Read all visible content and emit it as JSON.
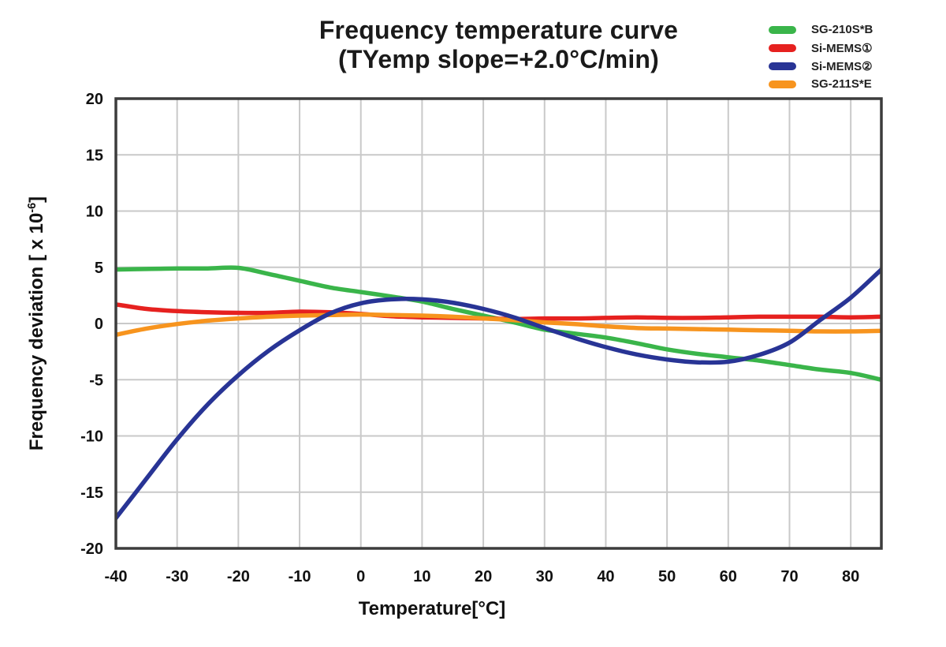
{
  "chart": {
    "title_line1": "Frequency temperature curve",
    "title_line2": "(TYemp slope=+2.0°C/min)",
    "xlabel": "Temperature[°C]",
    "ylabel_parts": {
      "main": "Frequency deviation [ x 10",
      "sup": "-6",
      "suffix": "]"
    }
  },
  "chart_data": {
    "type": "line",
    "title": "Frequency temperature curve (TYemp slope=+2.0°C/min)",
    "xlabel": "Temperature[°C]",
    "ylabel": "Frequency deviation [ x 10^-6 ]",
    "xlim": [
      -40,
      85
    ],
    "ylim": [
      -20,
      20
    ],
    "x_ticks": [
      -40,
      -30,
      -20,
      -10,
      0,
      10,
      20,
      30,
      40,
      50,
      60,
      70,
      80
    ],
    "y_ticks": [
      20,
      15,
      10,
      5,
      0,
      -5,
      -10,
      -15,
      -20
    ],
    "grid": true,
    "legend_position": "top-right",
    "x": [
      -40,
      -35,
      -30,
      -25,
      -20,
      -15,
      -10,
      -5,
      0,
      5,
      10,
      15,
      20,
      25,
      30,
      35,
      40,
      45,
      50,
      55,
      60,
      65,
      70,
      75,
      80,
      85
    ],
    "series": [
      {
        "name": "SG-210S*B",
        "color": "#3ab54a",
        "values": [
          4.8,
          4.85,
          4.9,
          4.9,
          4.95,
          4.4,
          3.8,
          3.2,
          2.8,
          2.4,
          1.95,
          1.3,
          0.7,
          0.1,
          -0.55,
          -0.9,
          -1.25,
          -1.75,
          -2.3,
          -2.7,
          -3.0,
          -3.3,
          -3.7,
          -4.1,
          -4.4,
          -5.0
        ]
      },
      {
        "name": "Si-MEMS①",
        "color": "#e6211f",
        "values": [
          1.7,
          1.3,
          1.1,
          1.0,
          0.95,
          0.95,
          1.05,
          1.0,
          0.85,
          0.65,
          0.55,
          0.5,
          0.45,
          0.4,
          0.45,
          0.45,
          0.5,
          0.55,
          0.5,
          0.5,
          0.55,
          0.6,
          0.6,
          0.6,
          0.55,
          0.6
        ]
      },
      {
        "name": "Si-MEMS②",
        "color": "#283495",
        "values": [
          -17.3,
          -13.8,
          -10.3,
          -7.2,
          -4.6,
          -2.4,
          -0.6,
          0.9,
          1.8,
          2.15,
          2.15,
          1.85,
          1.3,
          0.55,
          -0.4,
          -1.3,
          -2.1,
          -2.75,
          -3.2,
          -3.45,
          -3.4,
          -2.8,
          -1.7,
          0.3,
          2.3,
          4.8
        ]
      },
      {
        "name": "SG-211S*E",
        "color": "#f7941e",
        "values": [
          -1.0,
          -0.45,
          -0.05,
          0.25,
          0.45,
          0.6,
          0.7,
          0.75,
          0.8,
          0.75,
          0.7,
          0.6,
          0.45,
          0.3,
          0.1,
          -0.05,
          -0.25,
          -0.4,
          -0.45,
          -0.5,
          -0.55,
          -0.6,
          -0.65,
          -0.7,
          -0.7,
          -0.65
        ]
      }
    ],
    "draw_order": [
      0,
      1,
      3,
      2
    ]
  },
  "colors": {
    "background": "#ffffff",
    "grid": "#c9c9c9",
    "frame": "#3c3c3c",
    "text": "#111111"
  }
}
